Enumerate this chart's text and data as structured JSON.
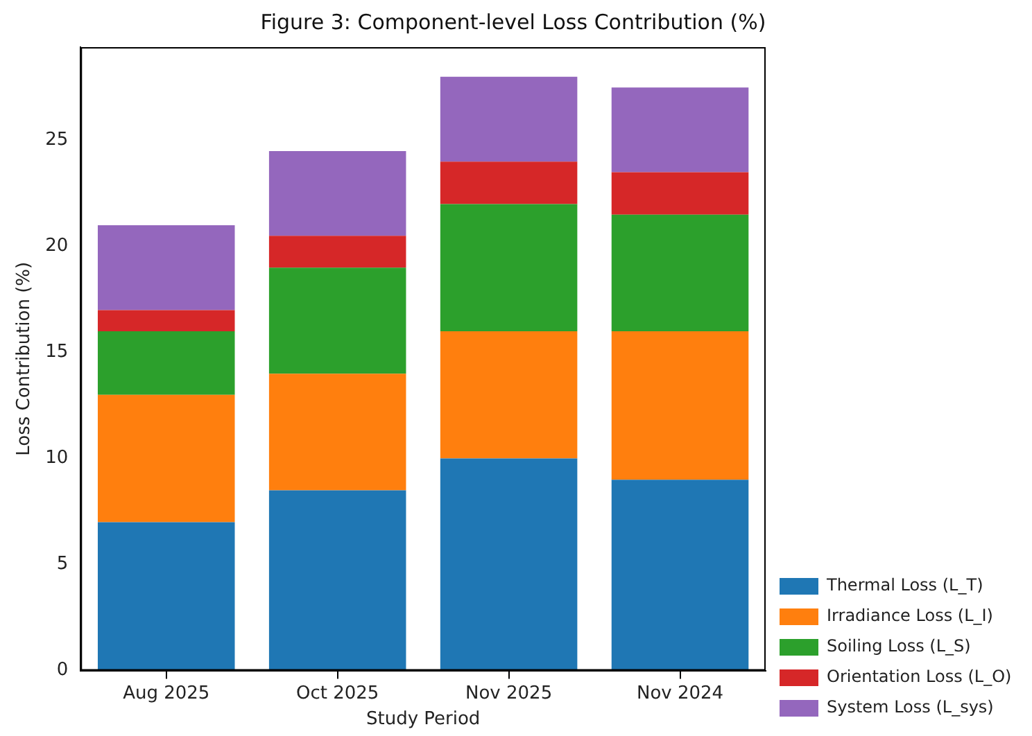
{
  "chart_data": {
    "type": "bar",
    "title": "Figure 3: Component-level Loss Contribution (%)",
    "xlabel": "Study Period",
    "ylabel": "Loss Contribution (%)",
    "categories": [
      "Aug 2025",
      "Oct 2025",
      "Nov 2025",
      "Nov 2024"
    ],
    "stacked": true,
    "series": [
      {
        "name": "Thermal Loss (L_T)",
        "color": "#1f77b4",
        "values": [
          7,
          8.5,
          10,
          9
        ]
      },
      {
        "name": "Irradiance Loss (L_I)",
        "color": "#ff7f0e",
        "values": [
          6,
          5.5,
          6,
          7
        ]
      },
      {
        "name": "Soiling Loss (L_S)",
        "color": "#2ca02c",
        "values": [
          3,
          5,
          6,
          5.5
        ]
      },
      {
        "name": "Orientation Loss (L_O)",
        "color": "#d62728",
        "values": [
          1,
          1.5,
          2,
          2
        ]
      },
      {
        "name": "System Loss (L_sys)",
        "color": "#9467bd",
        "values": [
          4,
          4,
          4,
          4
        ]
      }
    ],
    "ylim": [
      0,
      29.4
    ],
    "yticks": [
      0,
      5,
      10,
      15,
      20,
      25
    ],
    "grid": false,
    "legend": "right"
  }
}
